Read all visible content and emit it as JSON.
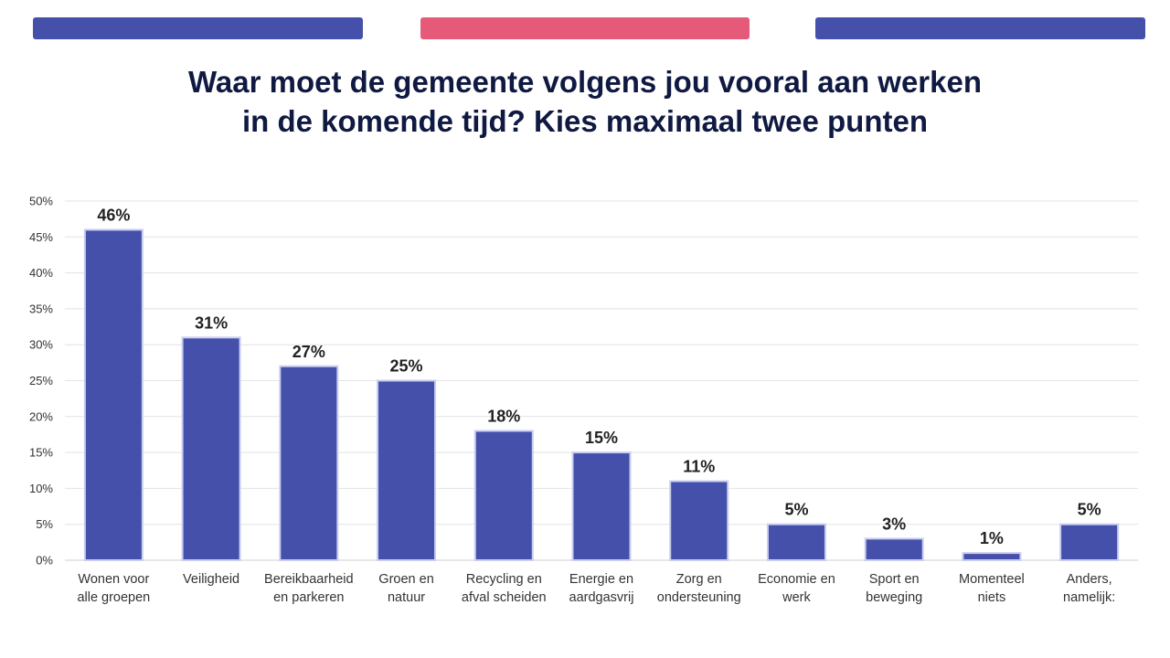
{
  "colors": {
    "bar": "#4450a9",
    "accent_left": "#4450a9",
    "accent_middle": "#e55a78",
    "accent_right": "#4450a9",
    "title": "#0f1941",
    "grid": "#e3e3e3"
  },
  "title": {
    "line1": "Waar moet de gemeente volgens jou vooral aan werken",
    "line2": "in de komende tijd? Kies maximaal twee punten"
  },
  "chart_data": {
    "type": "bar",
    "title": "Waar moet de gemeente volgens jou vooral aan werken in de komende tijd? Kies maximaal twee punten",
    "categories": [
      [
        "Wonen voor",
        "alle groepen"
      ],
      [
        "Veiligheid"
      ],
      [
        "Bereikbaarheid",
        "en parkeren"
      ],
      [
        "Groen en",
        "natuur"
      ],
      [
        "Recycling en",
        "afval scheiden"
      ],
      [
        "Energie en",
        "aardgasvrij"
      ],
      [
        "Zorg en",
        "ondersteuning"
      ],
      [
        "Economie en",
        "werk"
      ],
      [
        "Sport en",
        "beweging"
      ],
      [
        "Momenteel",
        "niets"
      ],
      [
        "Anders,",
        "namelijk:"
      ]
    ],
    "values": [
      46,
      31,
      27,
      25,
      18,
      15,
      11,
      5,
      3,
      1,
      5
    ],
    "value_labels": [
      "46%",
      "31%",
      "27%",
      "25%",
      "18%",
      "15%",
      "11%",
      "5%",
      "3%",
      "1%",
      "5%"
    ],
    "y_ticks": [
      "0%",
      "5%",
      "10%",
      "15%",
      "20%",
      "25%",
      "30%",
      "35%",
      "40%",
      "45%",
      "50%"
    ],
    "ylim": [
      0,
      50
    ],
    "grid": true,
    "legend": "none",
    "xlabel": "",
    "ylabel": ""
  }
}
